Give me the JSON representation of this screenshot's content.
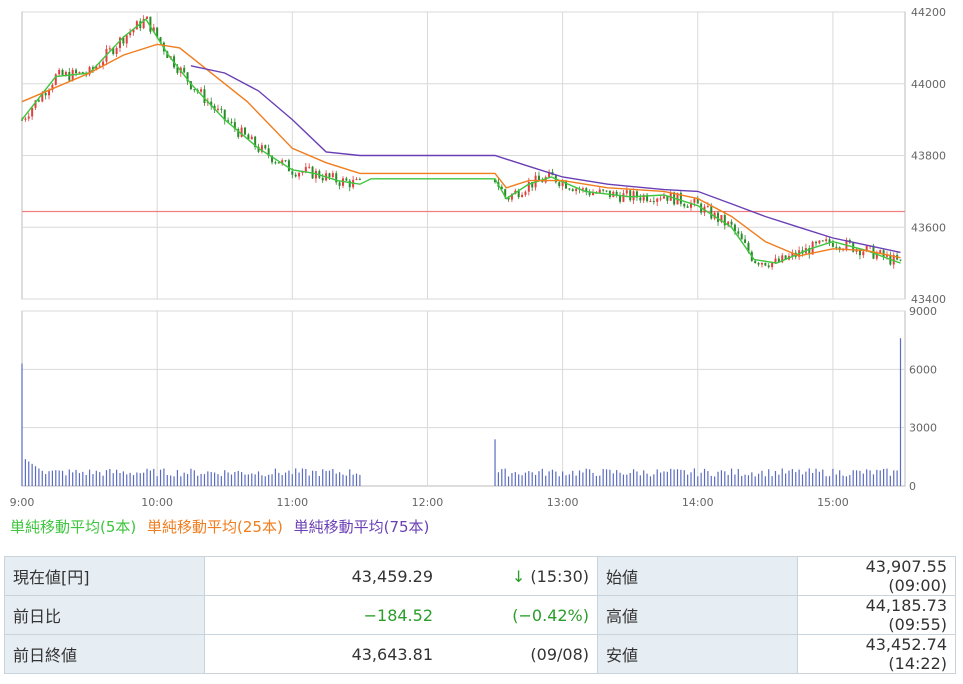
{
  "colors": {
    "candle_up": "#e04040",
    "candle_down": "#2a8a2a",
    "ma5": "#3ec43e",
    "ma25": "#f07d1e",
    "ma75": "#6a3fb5",
    "prev_close_line": "#f08080",
    "volume": "#5b6cc0",
    "grid": "#d9d9d9"
  },
  "chart_data": [
    {
      "type": "line",
      "x_ticks": [
        "9:00",
        "10:00",
        "11:00",
        "12:00",
        "13:00",
        "14:00",
        "15:00"
      ],
      "y_ticks": [
        44200,
        44000,
        43800,
        43600,
        43400
      ],
      "ylim": [
        43400,
        44200
      ],
      "reference_line": 43643.81,
      "series": [
        {
          "name": "単純移動平均(5本)",
          "key": "ma5",
          "points": [
            [
              "9:00",
              43900
            ],
            [
              "9:15",
              44020
            ],
            [
              "9:30",
              44030
            ],
            [
              "9:45",
              44130
            ],
            [
              "9:55",
              44180
            ],
            [
              "10:05",
              44080
            ],
            [
              "10:15",
              44000
            ],
            [
              "10:30",
              43900
            ],
            [
              "10:45",
              43820
            ],
            [
              "11:00",
              43760
            ],
            [
              "11:10",
              43750
            ],
            [
              "11:20",
              43730
            ],
            [
              "11:30",
              43720
            ],
            [
              "11:35",
              43735
            ],
            [
              "12:30",
              43735
            ],
            [
              "12:35",
              43680
            ],
            [
              "12:45",
              43720
            ],
            [
              "12:55",
              43740
            ],
            [
              "13:10",
              43700
            ],
            [
              "13:30",
              43685
            ],
            [
              "13:45",
              43690
            ],
            [
              "14:00",
              43660
            ],
            [
              "14:15",
              43600
            ],
            [
              "14:25",
              43510
            ],
            [
              "14:35",
              43500
            ],
            [
              "14:50",
              43540
            ],
            [
              "15:00",
              43560
            ],
            [
              "15:15",
              43535
            ],
            [
              "15:30",
              43500
            ]
          ]
        },
        {
          "name": "単純移動平均(25本)",
          "key": "ma25",
          "points": [
            [
              "9:00",
              43950
            ],
            [
              "9:15",
              43990
            ],
            [
              "9:30",
              44030
            ],
            [
              "9:45",
              44080
            ],
            [
              "10:00",
              44110
            ],
            [
              "10:10",
              44100
            ],
            [
              "10:20",
              44050
            ],
            [
              "10:40",
              43950
            ],
            [
              "11:00",
              43820
            ],
            [
              "11:15",
              43780
            ],
            [
              "11:30",
              43750
            ],
            [
              "12:30",
              43750
            ],
            [
              "12:35",
              43710
            ],
            [
              "12:45",
              43730
            ],
            [
              "13:00",
              43730
            ],
            [
              "13:20",
              43710
            ],
            [
              "13:45",
              43700
            ],
            [
              "14:00",
              43680
            ],
            [
              "14:15",
              43630
            ],
            [
              "14:30",
              43560
            ],
            [
              "14:45",
              43520
            ],
            [
              "15:00",
              43540
            ],
            [
              "15:15",
              43535
            ],
            [
              "15:30",
              43515
            ]
          ]
        },
        {
          "name": "単純移動平均(75本)",
          "key": "ma75",
          "points": [
            [
              "10:15",
              44050
            ],
            [
              "10:30",
              44030
            ],
            [
              "10:45",
              43980
            ],
            [
              "11:00",
              43900
            ],
            [
              "11:15",
              43810
            ],
            [
              "11:30",
              43800
            ],
            [
              "12:00",
              43800
            ],
            [
              "12:30",
              43800
            ],
            [
              "12:45",
              43770
            ],
            [
              "13:00",
              43740
            ],
            [
              "13:20",
              43720
            ],
            [
              "13:45",
              43705
            ],
            [
              "14:00",
              43700
            ],
            [
              "14:15",
              43665
            ],
            [
              "14:30",
              43630
            ],
            [
              "14:45",
              43600
            ],
            [
              "15:00",
              43570
            ],
            [
              "15:15",
              43550
            ],
            [
              "15:30",
              43530
            ]
          ]
        }
      ]
    },
    {
      "type": "bar",
      "y_ticks": [
        9000,
        6000,
        3000,
        0
      ],
      "ylim": [
        0,
        9000
      ],
      "notable_values": [
        [
          "9:00",
          6300
        ],
        [
          "12:30",
          2400
        ],
        [
          "13:45",
          750
        ],
        [
          "15:30",
          7600
        ]
      ],
      "typical_value": 700
    }
  ],
  "legend": [
    {
      "label": "単純移動平均(5本)",
      "color": "#3ec43e"
    },
    {
      "label": "単純移動平均(25本)",
      "color": "#f07d1e"
    },
    {
      "label": "単純移動平均(75本)",
      "color": "#6a3fb5"
    }
  ],
  "quote": {
    "current_label": "現在値[円]",
    "current_value": "43,459.29",
    "current_arrow": "↓",
    "current_time": "(15:30)",
    "open_label": "始値",
    "open_value": "43,907.55 (09:00)",
    "change_label": "前日比",
    "change_value": "−184.52",
    "change_pct": "(−0.42%)",
    "high_label": "高値",
    "high_value": "44,185.73 (09:55)",
    "prev_close_label": "前日終値",
    "prev_close_value": "43,643.81",
    "prev_close_date": "(09/08)",
    "low_label": "安値",
    "low_value": "43,452.74 (14:22)"
  }
}
